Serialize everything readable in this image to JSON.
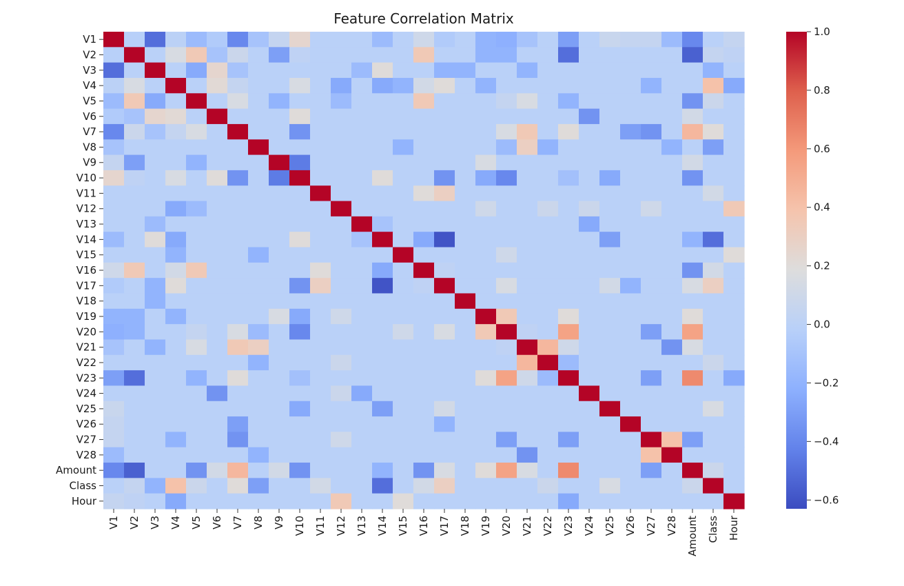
{
  "chart_data": {
    "type": "heatmap",
    "title": "Feature Correlation Matrix",
    "xlabel": "",
    "ylabel": "",
    "labels": [
      "V1",
      "V2",
      "V3",
      "V4",
      "V5",
      "V6",
      "V7",
      "V8",
      "V9",
      "V10",
      "V11",
      "V12",
      "V13",
      "V14",
      "V15",
      "V16",
      "V17",
      "V18",
      "V19",
      "V20",
      "V21",
      "V22",
      "V23",
      "V24",
      "V25",
      "V26",
      "V27",
      "V28",
      "Amount",
      "Class",
      "Hour"
    ],
    "colormap": "coolwarm",
    "vmin": -0.63,
    "vmax": 1.0,
    "colorbar_ticks": [
      {
        "value": 1.0,
        "label": "1.0"
      },
      {
        "value": 0.8,
        "label": "0.8"
      },
      {
        "value": 0.6,
        "label": "0.6"
      },
      {
        "value": 0.4,
        "label": "0.4"
      },
      {
        "value": 0.2,
        "label": "0.2"
      },
      {
        "value": 0.0,
        "label": "0.0"
      },
      {
        "value": -0.2,
        "label": "−0.2"
      },
      {
        "value": -0.4,
        "label": "−0.4"
      },
      {
        "value": -0.6,
        "label": "−0.6"
      }
    ],
    "default_value": -0.01,
    "diagonal_value": 1.0,
    "pairs": [
      [
        "V1",
        "V2",
        -0.02
      ],
      [
        "V1",
        "V3",
        -0.5
      ],
      [
        "V1",
        "V4",
        0.0
      ],
      [
        "V1",
        "V5",
        -0.15
      ],
      [
        "V1",
        "V6",
        -0.05
      ],
      [
        "V1",
        "V7",
        -0.4
      ],
      [
        "V1",
        "V8",
        -0.1
      ],
      [
        "V1",
        "V9",
        0.05
      ],
      [
        "V1",
        "V10",
        0.25
      ],
      [
        "V1",
        "V14",
        -0.15
      ],
      [
        "V1",
        "V16",
        0.1
      ],
      [
        "V1",
        "V17",
        -0.05
      ],
      [
        "V1",
        "V19",
        -0.2
      ],
      [
        "V1",
        "V20",
        -0.22
      ],
      [
        "V1",
        "V21",
        -0.1
      ],
      [
        "V1",
        "V23",
        -0.3
      ],
      [
        "V1",
        "V25",
        0.07
      ],
      [
        "V1",
        "V26",
        0.05
      ],
      [
        "V1",
        "V27",
        0.05
      ],
      [
        "V1",
        "V28",
        -0.15
      ],
      [
        "V1",
        "Amount",
        -0.4
      ],
      [
        "V1",
        "Hour",
        0.05
      ],
      [
        "V2",
        "V4",
        0.15
      ],
      [
        "V2",
        "V5",
        0.35
      ],
      [
        "V2",
        "V6",
        -0.1
      ],
      [
        "V2",
        "V7",
        0.08
      ],
      [
        "V2",
        "V9",
        -0.3
      ],
      [
        "V2",
        "V10",
        0.02
      ],
      [
        "V2",
        "V16",
        0.35
      ],
      [
        "V2",
        "V19",
        -0.2
      ],
      [
        "V2",
        "V20",
        -0.2
      ],
      [
        "V2",
        "V23",
        -0.5
      ],
      [
        "V2",
        "Amount",
        -0.55
      ],
      [
        "V2",
        "Class",
        0.05
      ],
      [
        "V2",
        "Hour",
        0.02
      ],
      [
        "V3",
        "V5",
        -0.25
      ],
      [
        "V3",
        "V6",
        0.25
      ],
      [
        "V3",
        "V7",
        -0.1
      ],
      [
        "V3",
        "V13",
        -0.15
      ],
      [
        "V3",
        "V14",
        0.2
      ],
      [
        "V3",
        "V17",
        -0.2
      ],
      [
        "V3",
        "V18",
        -0.2
      ],
      [
        "V3",
        "V21",
        -0.2
      ],
      [
        "V3",
        "Class",
        -0.2
      ],
      [
        "V4",
        "V6",
        0.22
      ],
      [
        "V4",
        "V7",
        0.05
      ],
      [
        "V4",
        "V10",
        0.15
      ],
      [
        "V4",
        "V12",
        -0.25
      ],
      [
        "V4",
        "V14",
        -0.25
      ],
      [
        "V4",
        "V15",
        -0.2
      ],
      [
        "V4",
        "V16",
        0.12
      ],
      [
        "V4",
        "V17",
        0.2
      ],
      [
        "V4",
        "V19",
        -0.2
      ],
      [
        "V4",
        "V27",
        -0.2
      ],
      [
        "V4",
        "Class",
        0.4
      ],
      [
        "V4",
        "Hour",
        -0.25
      ],
      [
        "V5",
        "V7",
        0.15
      ],
      [
        "V5",
        "V9",
        -0.2
      ],
      [
        "V5",
        "V12",
        -0.15
      ],
      [
        "V5",
        "V16",
        0.35
      ],
      [
        "V5",
        "V20",
        0.05
      ],
      [
        "V5",
        "V21",
        0.15
      ],
      [
        "V5",
        "V23",
        -0.2
      ],
      [
        "V5",
        "Amount",
        -0.35
      ],
      [
        "V5",
        "Class",
        0.08
      ],
      [
        "V6",
        "V10",
        0.2
      ],
      [
        "V6",
        "V24",
        -0.35
      ],
      [
        "V6",
        "Amount",
        0.12
      ],
      [
        "V7",
        "V10",
        -0.35
      ],
      [
        "V7",
        "V20",
        0.15
      ],
      [
        "V7",
        "V21",
        0.35
      ],
      [
        "V7",
        "V23",
        0.2
      ],
      [
        "V7",
        "V26",
        -0.3
      ],
      [
        "V7",
        "V27",
        -0.35
      ],
      [
        "V7",
        "Amount",
        0.45
      ],
      [
        "V7",
        "Class",
        0.2
      ],
      [
        "V8",
        "V15",
        -0.2
      ],
      [
        "V8",
        "V20",
        -0.15
      ],
      [
        "V8",
        "V21",
        0.3
      ],
      [
        "V8",
        "V22",
        -0.2
      ],
      [
        "V8",
        "V28",
        -0.2
      ],
      [
        "V8",
        "Class",
        -0.3
      ],
      [
        "V9",
        "V10",
        -0.45
      ],
      [
        "V9",
        "V19",
        0.15
      ],
      [
        "V9",
        "Amount",
        0.12
      ],
      [
        "V10",
        "V14",
        0.2
      ],
      [
        "V10",
        "V17",
        -0.35
      ],
      [
        "V10",
        "V19",
        -0.25
      ],
      [
        "V10",
        "V20",
        -0.4
      ],
      [
        "V10",
        "V23",
        -0.12
      ],
      [
        "V10",
        "V25",
        -0.25
      ],
      [
        "V10",
        "Amount",
        -0.35
      ],
      [
        "V11",
        "V16",
        0.2
      ],
      [
        "V11",
        "V17",
        0.3
      ],
      [
        "V11",
        "Class",
        0.12
      ],
      [
        "V12",
        "V19",
        0.1
      ],
      [
        "V12",
        "V22",
        0.08
      ],
      [
        "V12",
        "V24",
        0.08
      ],
      [
        "V12",
        "V27",
        0.1
      ],
      [
        "V12",
        "Hour",
        0.35
      ],
      [
        "V13",
        "V14",
        -0.1
      ],
      [
        "V13",
        "V24",
        -0.25
      ],
      [
        "V14",
        "V17",
        -0.6
      ],
      [
        "V14",
        "V16",
        -0.25
      ],
      [
        "V14",
        "Class",
        -0.5
      ],
      [
        "V14",
        "V25",
        -0.3
      ],
      [
        "V14",
        "Amount",
        -0.2
      ],
      [
        "V15",
        "V20",
        0.1
      ],
      [
        "V15",
        "Hour",
        0.2
      ],
      [
        "V16",
        "V17",
        0.02
      ],
      [
        "V16",
        "Amount",
        -0.35
      ],
      [
        "V16",
        "Class",
        0.12
      ],
      [
        "V17",
        "V20",
        0.15
      ],
      [
        "V17",
        "V25",
        0.12
      ],
      [
        "V17",
        "V26",
        -0.2
      ],
      [
        "V17",
        "Amount",
        0.15
      ],
      [
        "V17",
        "Class",
        0.3
      ],
      [
        "V19",
        "V20",
        0.35
      ],
      [
        "V19",
        "V23",
        0.2
      ],
      [
        "V19",
        "Amount",
        0.2
      ],
      [
        "V20",
        "V23",
        0.55
      ],
      [
        "V20",
        "V27",
        -0.3
      ],
      [
        "V20",
        "Amount",
        0.55
      ],
      [
        "V20",
        "V21",
        0.02
      ],
      [
        "V21",
        "V22",
        0.45
      ],
      [
        "V21",
        "V28",
        -0.35
      ],
      [
        "V21",
        "Amount",
        0.15
      ],
      [
        "V21",
        "V23",
        0.1
      ],
      [
        "V22",
        "V23",
        -0.15
      ],
      [
        "V22",
        "Class",
        0.08
      ],
      [
        "V23",
        "V27",
        -0.3
      ],
      [
        "V23",
        "Amount",
        0.65
      ],
      [
        "V23",
        "Hour",
        -0.25
      ],
      [
        "V25",
        "Class",
        0.15
      ],
      [
        "V27",
        "V28",
        0.4
      ],
      [
        "V27",
        "Amount",
        -0.3
      ],
      [
        "Amount",
        "Class",
        0.08
      ]
    ]
  }
}
